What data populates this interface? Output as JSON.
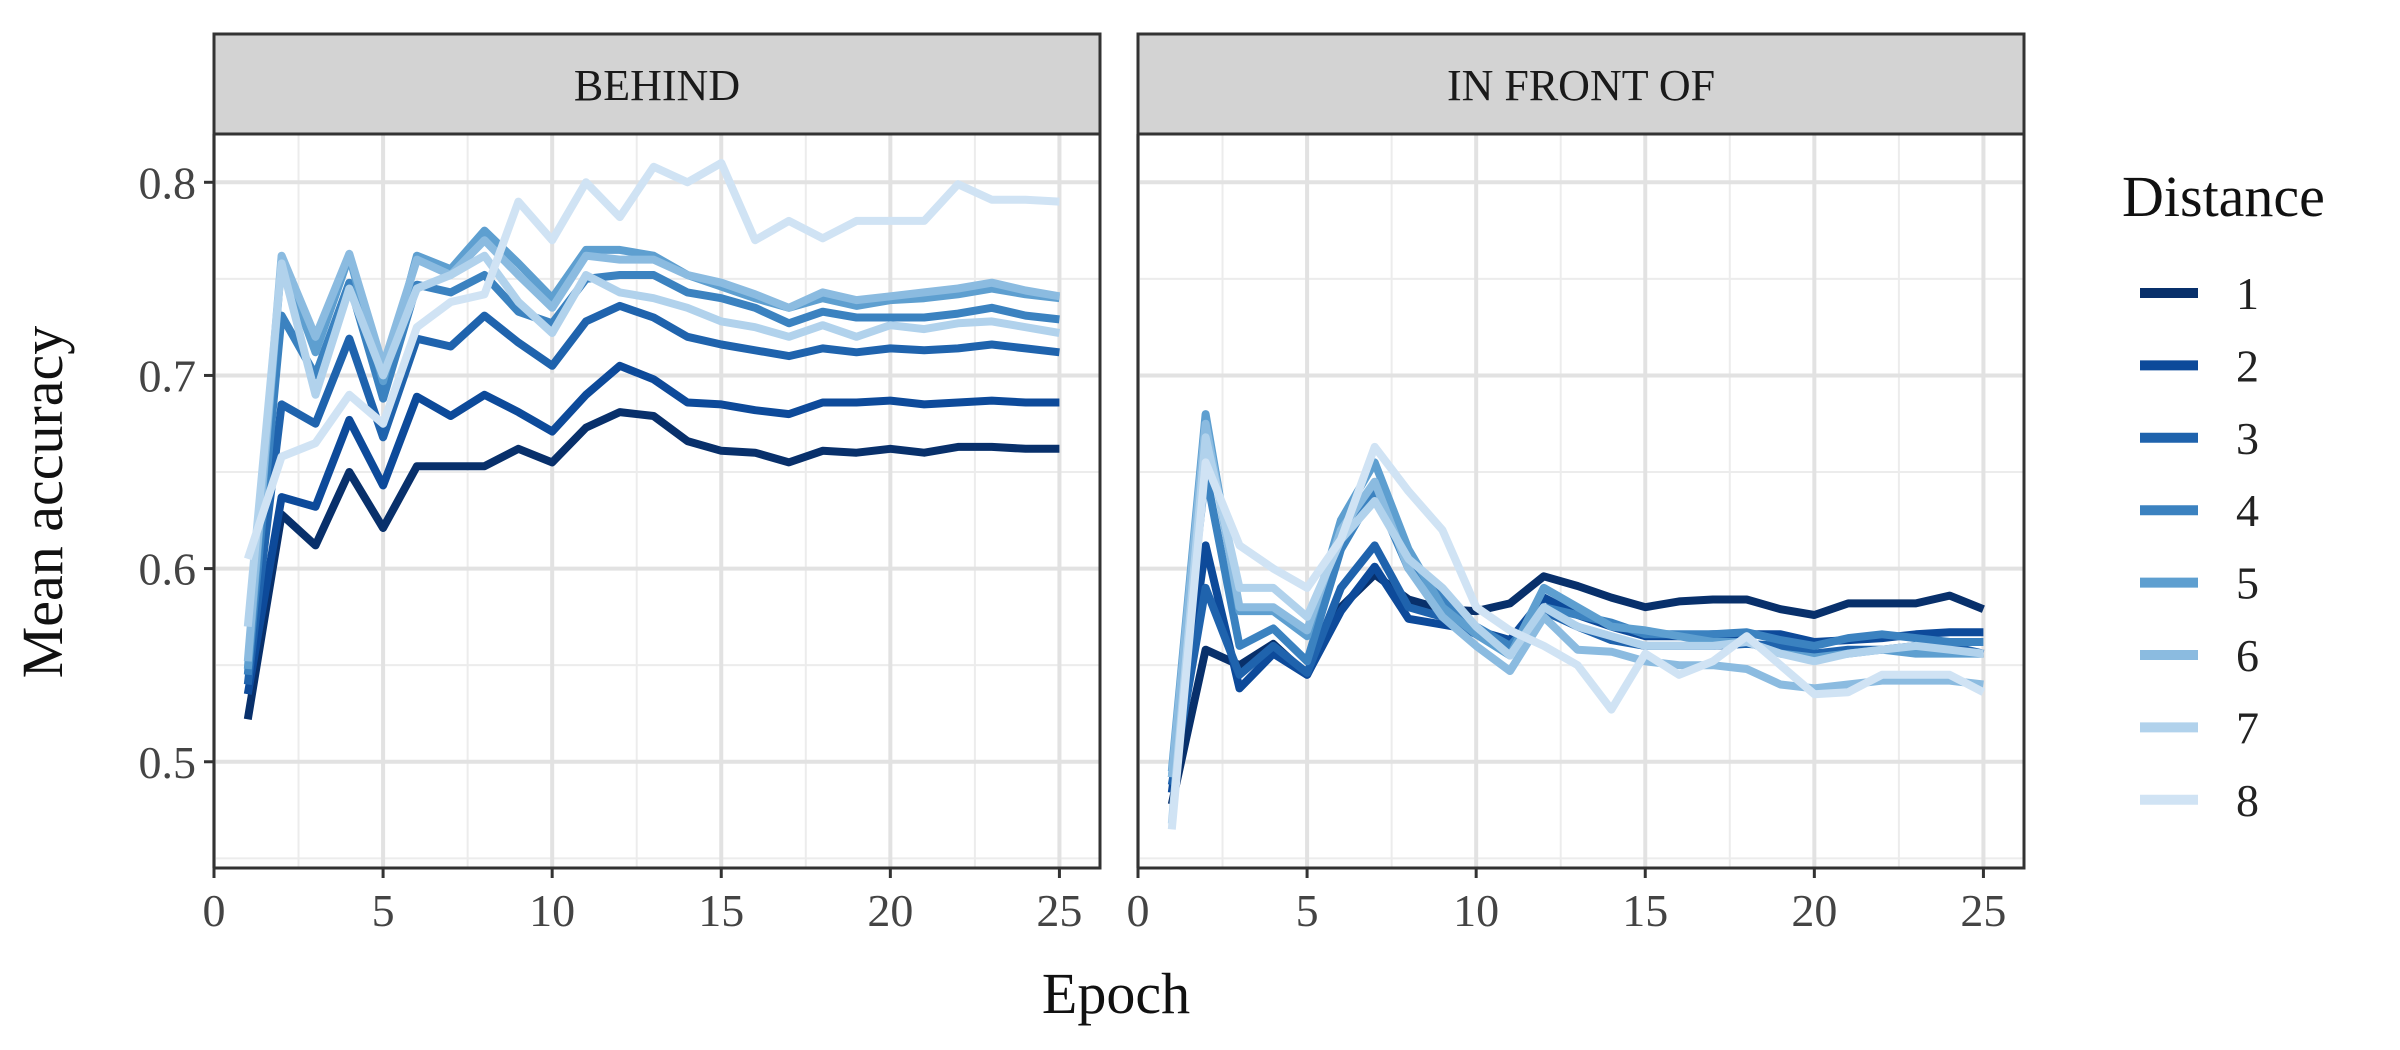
{
  "chart_data": {
    "type": "line",
    "xlabel": "Epoch",
    "ylabel": "Mean accuracy",
    "xlim": [
      0,
      26.2
    ],
    "ylim": [
      0.445,
      0.825
    ],
    "x_ticks": [
      0,
      5,
      10,
      15,
      20,
      25
    ],
    "y_ticks": [
      0.5,
      0.6,
      0.7,
      0.8
    ],
    "grid": true,
    "legend": {
      "title": "Distance",
      "position": "right"
    },
    "colors": [
      "#08306b",
      "#0d4a9a",
      "#1f63ad",
      "#3b82c0",
      "#5e9fd0",
      "#8bbbe0",
      "#b1d2ec",
      "#d0e3f4"
    ],
    "x": [
      1,
      2,
      3,
      4,
      5,
      6,
      7,
      8,
      9,
      10,
      11,
      12,
      13,
      14,
      15,
      16,
      17,
      18,
      19,
      20,
      21,
      22,
      23,
      24,
      25
    ],
    "panels": [
      {
        "title": "BEHIND",
        "series": [
          {
            "name": "1",
            "values": [
              0.522,
              0.628,
              0.612,
              0.65,
              0.621,
              0.653,
              0.653,
              0.653,
              0.662,
              0.655,
              0.673,
              0.681,
              0.679,
              0.666,
              0.661,
              0.66,
              0.655,
              0.661,
              0.66,
              0.662,
              0.66,
              0.663,
              0.663,
              0.662,
              0.662
            ]
          },
          {
            "name": "2",
            "values": [
              0.535,
              0.637,
              0.632,
              0.677,
              0.643,
              0.689,
              0.679,
              0.69,
              0.681,
              0.671,
              0.69,
              0.705,
              0.698,
              0.686,
              0.685,
              0.682,
              0.68,
              0.686,
              0.686,
              0.687,
              0.685,
              0.686,
              0.687,
              0.686,
              0.686
            ]
          },
          {
            "name": "3",
            "values": [
              0.54,
              0.685,
              0.675,
              0.719,
              0.668,
              0.719,
              0.715,
              0.731,
              0.717,
              0.705,
              0.728,
              0.736,
              0.73,
              0.72,
              0.716,
              0.713,
              0.71,
              0.714,
              0.712,
              0.714,
              0.713,
              0.714,
              0.716,
              0.714,
              0.712
            ]
          },
          {
            "name": "4",
            "values": [
              0.545,
              0.731,
              0.7,
              0.748,
              0.688,
              0.747,
              0.743,
              0.752,
              0.733,
              0.727,
              0.75,
              0.752,
              0.752,
              0.743,
              0.74,
              0.735,
              0.727,
              0.733,
              0.73,
              0.73,
              0.73,
              0.732,
              0.735,
              0.731,
              0.729
            ]
          },
          {
            "name": "5",
            "values": [
              0.548,
              0.76,
              0.712,
              0.762,
              0.697,
              0.762,
              0.755,
              0.775,
              0.758,
              0.74,
              0.765,
              0.765,
              0.762,
              0.752,
              0.746,
              0.74,
              0.735,
              0.74,
              0.736,
              0.739,
              0.74,
              0.742,
              0.745,
              0.742,
              0.74
            ]
          },
          {
            "name": "6",
            "values": [
              0.552,
              0.762,
              0.72,
              0.763,
              0.705,
              0.76,
              0.752,
              0.77,
              0.752,
              0.735,
              0.762,
              0.76,
              0.76,
              0.752,
              0.748,
              0.742,
              0.735,
              0.743,
              0.739,
              0.741,
              0.743,
              0.745,
              0.748,
              0.744,
              0.741
            ]
          },
          {
            "name": "7",
            "values": [
              0.57,
              0.758,
              0.69,
              0.745,
              0.7,
              0.745,
              0.752,
              0.762,
              0.738,
              0.722,
              0.752,
              0.743,
              0.74,
              0.735,
              0.728,
              0.725,
              0.72,
              0.726,
              0.72,
              0.726,
              0.724,
              0.727,
              0.728,
              0.725,
              0.722
            ]
          },
          {
            "name": "8",
            "values": [
              0.605,
              0.658,
              0.665,
              0.69,
              0.675,
              0.725,
              0.738,
              0.742,
              0.79,
              0.77,
              0.8,
              0.782,
              0.808,
              0.8,
              0.81,
              0.77,
              0.78,
              0.771,
              0.78,
              0.78,
              0.78,
              0.799,
              0.791,
              0.791,
              0.79
            ]
          }
        ]
      },
      {
        "title": "IN FRONT OF",
        "series": [
          {
            "name": "1",
            "values": [
              0.478,
              0.558,
              0.55,
              0.561,
              0.545,
              0.58,
              0.597,
              0.584,
              0.579,
              0.578,
              0.582,
              0.596,
              0.591,
              0.585,
              0.58,
              0.583,
              0.584,
              0.584,
              0.579,
              0.576,
              0.582,
              0.582,
              0.582,
              0.586,
              0.579
            ]
          },
          {
            "name": "2",
            "values": [
              0.484,
              0.612,
              0.538,
              0.556,
              0.545,
              0.578,
              0.601,
              0.574,
              0.571,
              0.568,
              0.563,
              0.585,
              0.576,
              0.57,
              0.565,
              0.565,
              0.566,
              0.566,
              0.566,
              0.562,
              0.563,
              0.564,
              0.566,
              0.567,
              0.567
            ]
          },
          {
            "name": "3",
            "values": [
              0.488,
              0.59,
              0.545,
              0.56,
              0.546,
              0.59,
              0.612,
              0.58,
              0.575,
              0.566,
              0.558,
              0.578,
              0.57,
              0.563,
              0.56,
              0.56,
              0.56,
              0.561,
              0.56,
              0.556,
              0.558,
              0.558,
              0.56,
              0.56,
              0.556
            ]
          },
          {
            "name": "4",
            "values": [
              0.492,
              0.65,
              0.56,
              0.569,
              0.552,
              0.61,
              0.64,
              0.6,
              0.585,
              0.57,
              0.56,
              0.58,
              0.576,
              0.572,
              0.566,
              0.566,
              0.566,
              0.567,
              0.563,
              0.56,
              0.564,
              0.566,
              0.564,
              0.562,
              0.562
            ]
          },
          {
            "name": "5",
            "values": [
              0.495,
              0.68,
              0.578,
              0.578,
              0.565,
              0.625,
              0.655,
              0.61,
              0.58,
              0.566,
              0.555,
              0.59,
              0.58,
              0.57,
              0.568,
              0.565,
              0.562,
              0.562,
              0.556,
              0.554,
              0.556,
              0.558,
              0.556,
              0.556,
              0.556
            ]
          },
          {
            "name": "6",
            "values": [
              0.492,
              0.675,
              0.58,
              0.58,
              0.568,
              0.62,
              0.645,
              0.6,
              0.575,
              0.56,
              0.547,
              0.575,
              0.558,
              0.557,
              0.552,
              0.55,
              0.55,
              0.548,
              0.54,
              0.538,
              0.54,
              0.542,
              0.542,
              0.542,
              0.54
            ]
          },
          {
            "name": "7",
            "values": [
              0.468,
              0.668,
              0.59,
              0.59,
              0.575,
              0.615,
              0.635,
              0.605,
              0.59,
              0.57,
              0.555,
              0.58,
              0.57,
              0.565,
              0.56,
              0.56,
              0.56,
              0.562,
              0.556,
              0.552,
              0.556,
              0.558,
              0.56,
              0.558,
              0.556
            ]
          },
          {
            "name": "8",
            "values": [
              0.465,
              0.655,
              0.612,
              0.6,
              0.59,
              0.615,
              0.663,
              0.64,
              0.62,
              0.58,
              0.568,
              0.56,
              0.55,
              0.527,
              0.556,
              0.545,
              0.552,
              0.565,
              0.55,
              0.535,
              0.536,
              0.545,
              0.545,
              0.545,
              0.536
            ]
          }
        ]
      }
    ]
  }
}
